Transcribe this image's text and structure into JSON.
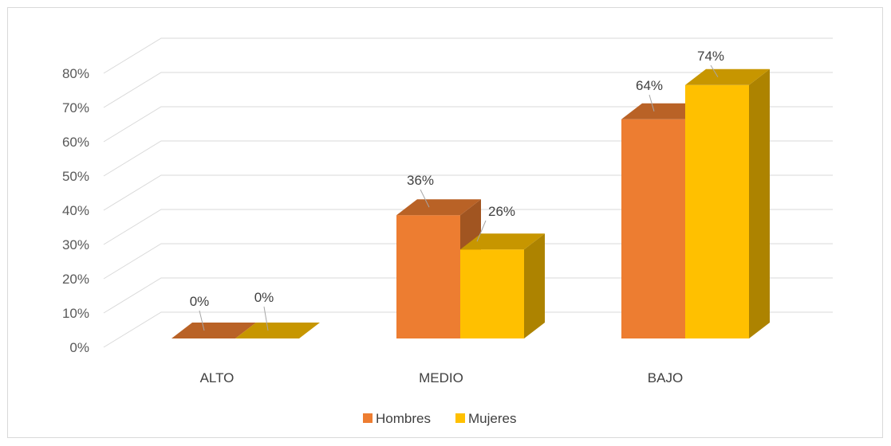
{
  "chart_data": {
    "type": "bar",
    "categories": [
      "ALTO",
      "MEDIO",
      "BAJO"
    ],
    "series": [
      {
        "name": "Hombres",
        "values": [
          0,
          36,
          64
        ],
        "labels": [
          "0%",
          "36%",
          "64%"
        ],
        "color": "#ED7D31"
      },
      {
        "name": "Mujeres",
        "values": [
          0,
          26,
          74
        ],
        "labels": [
          "0%",
          "26%",
          "74%"
        ],
        "color": "#FFC000"
      }
    ],
    "ylim": [
      0,
      80
    ],
    "yticks": [
      "0%",
      "10%",
      "20%",
      "30%",
      "40%",
      "50%",
      "60%",
      "70%",
      "80%"
    ],
    "grid": true,
    "legend": "bottom",
    "style": "3d-clustered-column"
  }
}
